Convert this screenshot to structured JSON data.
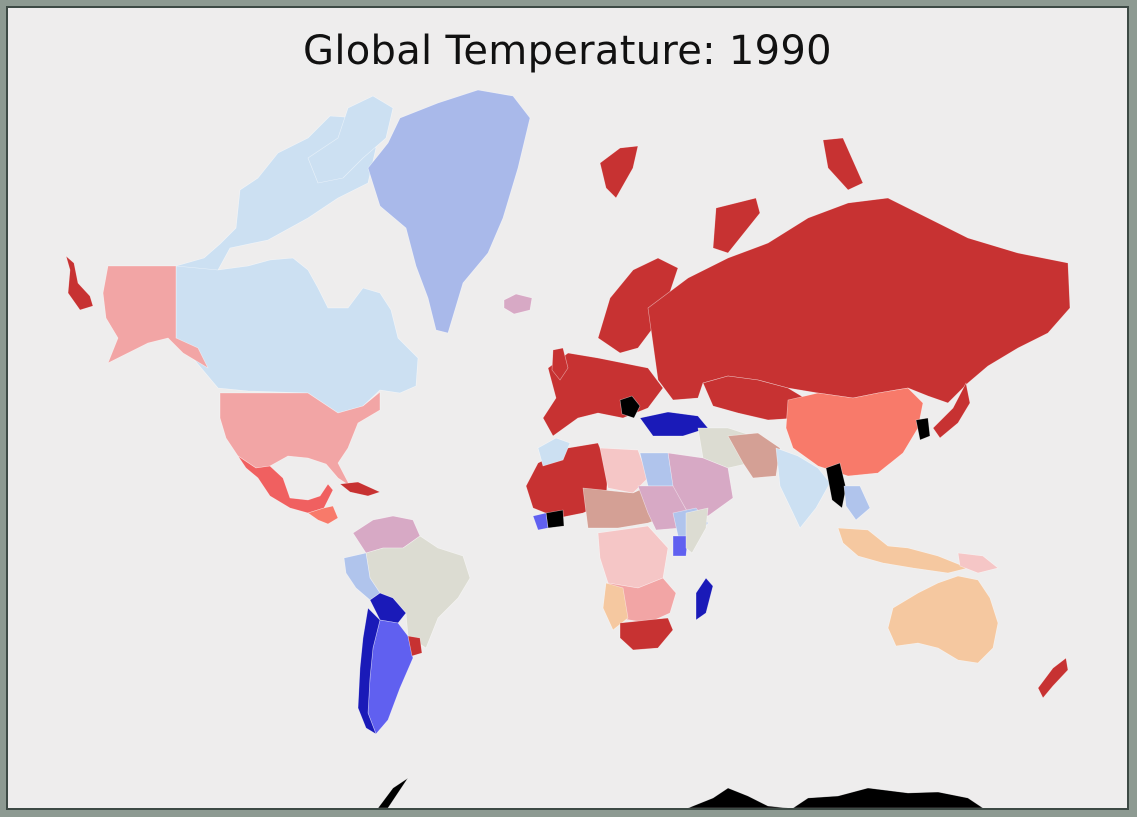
{
  "title": "Global Temperature: 1990",
  "colors": {
    "frame_bg": "#8d9a92",
    "map_bg": "#eeeded",
    "dark_red": "#c73232",
    "red": "#f06060",
    "salmon": "#f87a6a",
    "light_red": "#f2a5a5",
    "pale_red": "#f5c6c6",
    "peach": "#f5c8a0",
    "mauve": "#d7a9c5",
    "tan": "#d4a095",
    "neutral": "#dcdcd2",
    "pale_blue": "#cce0f2",
    "light_blue": "#b0c4ec",
    "periwinkle": "#a9b9ea",
    "blue": "#6060f0",
    "dark_blue": "#1a1ab8",
    "no_data": "#000000"
  }
}
